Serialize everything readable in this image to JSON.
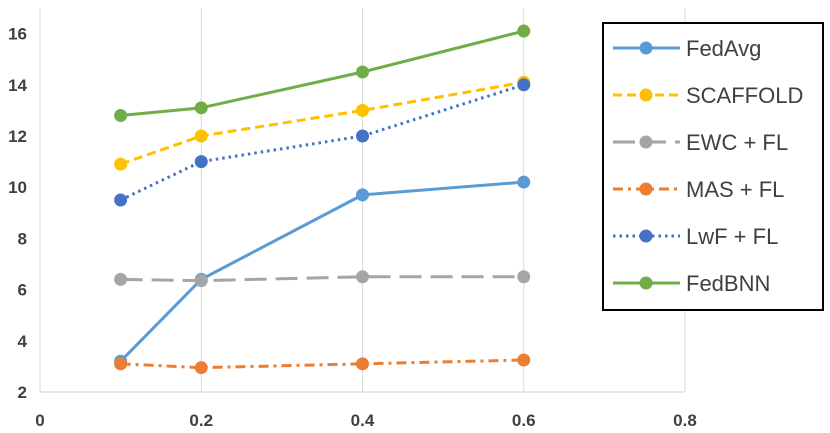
{
  "chart_data": {
    "type": "line",
    "title": "",
    "xlabel": "",
    "ylabel": "",
    "xlim": [
      0,
      0.8
    ],
    "ylim": [
      2,
      17
    ],
    "x_ticks": [
      "0",
      "0.2",
      "0.4",
      "0.6",
      "0.8"
    ],
    "y_ticks": [
      "2",
      "4",
      "6",
      "8",
      "10",
      "12",
      "14",
      "16"
    ],
    "grid": "vertical",
    "legend_position": "right",
    "x": [
      0.1,
      0.2,
      0.4,
      0.6
    ],
    "series": [
      {
        "name": "FedAvg",
        "values": [
          3.2,
          6.4,
          9.7,
          10.2
        ],
        "color": "#5B9BD5",
        "dash": "solid"
      },
      {
        "name": "SCAFFOLD",
        "values": [
          10.9,
          12.0,
          13.0,
          14.1
        ],
        "color": "#FFC000",
        "dash": "dash"
      },
      {
        "name": "EWC + FL",
        "values": [
          6.4,
          6.35,
          6.5,
          6.5
        ],
        "color": "#A5A5A5",
        "dash": "longdash"
      },
      {
        "name": "MAS + FL",
        "values": [
          3.1,
          2.95,
          3.1,
          3.25
        ],
        "color": "#ED7D31",
        "dash": "dashdot"
      },
      {
        "name": "LwF + FL",
        "values": [
          9.5,
          11.0,
          12.0,
          14.0
        ],
        "color": "#4472C4",
        "dash": "dot"
      },
      {
        "name": "FedBNN",
        "values": [
          12.8,
          13.1,
          14.5,
          16.1
        ],
        "color": "#70AD47",
        "dash": "solid"
      }
    ]
  }
}
